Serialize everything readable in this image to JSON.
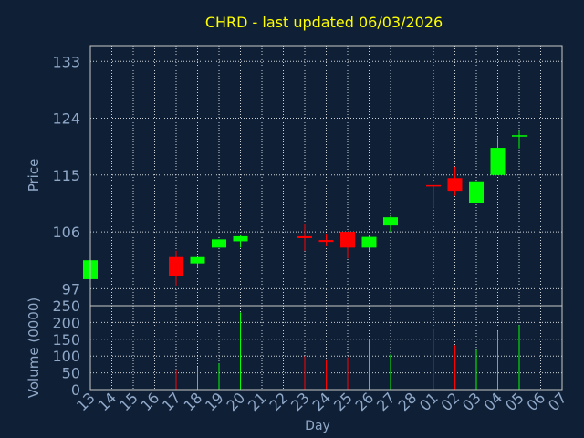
{
  "chart_data": {
    "type": "candlestick",
    "title": "CHRD - last updated 06/03/2026",
    "colors": {
      "background": "#0f1f35",
      "title": "#ffff00",
      "axis_text": "#8fa8c8",
      "frame": "#c8c8c8",
      "grid": "#ffffff",
      "up": "#00ff00",
      "down": "#ff0000"
    },
    "price_panel": {
      "ylabel": "Price",
      "yticks": [
        97,
        106,
        115,
        124,
        133
      ],
      "ylim": [
        94.3,
        135.5
      ]
    },
    "volume_panel": {
      "ylabel": "Volume (0000)",
      "yticks": [
        0,
        50,
        100,
        150,
        200,
        250
      ],
      "ylim": [
        0,
        250
      ]
    },
    "xlabel": "Day",
    "x_labels": [
      "13",
      "14",
      "15",
      "16",
      "17",
      "18",
      "19",
      "20",
      "21",
      "22",
      "23",
      "24",
      "25",
      "26",
      "27",
      "28",
      "01",
      "02",
      "03",
      "04",
      "05",
      "06",
      "07"
    ],
    "candles": [
      {
        "i": 0,
        "open": 98.5,
        "high": 101.5,
        "low": 98.0,
        "close": 101.5,
        "volume": 0
      },
      {
        "i": 4,
        "open": 102.0,
        "high": 103.0,
        "low": 97.5,
        "close": 99.0,
        "volume": 60
      },
      {
        "i": 5,
        "open": 101.0,
        "high": 102.0,
        "low": 100.3,
        "close": 102.0,
        "volume": 68
      },
      {
        "i": 6,
        "open": 103.5,
        "high": 104.8,
        "low": 103.5,
        "close": 104.8,
        "volume": 78
      },
      {
        "i": 7,
        "open": 104.5,
        "high": 105.5,
        "low": 103.5,
        "close": 105.3,
        "volume": 230
      },
      {
        "i": 10,
        "open": 105.3,
        "high": 107.3,
        "low": 103.0,
        "close": 105.0,
        "volume": 100
      },
      {
        "i": 11,
        "open": 104.7,
        "high": 105.7,
        "low": 103.7,
        "close": 104.4,
        "volume": 90
      },
      {
        "i": 12,
        "open": 106.0,
        "high": 106.0,
        "low": 101.8,
        "close": 103.5,
        "volume": 96
      },
      {
        "i": 13,
        "open": 103.5,
        "high": 105.5,
        "low": 103.0,
        "close": 105.2,
        "volume": 150
      },
      {
        "i": 14,
        "open": 107.0,
        "high": 108.5,
        "low": 106.0,
        "close": 108.3,
        "volume": 105
      },
      {
        "i": 16,
        "open": 113.4,
        "high": 113.4,
        "low": 109.8,
        "close": 113.3,
        "volume": 180
      },
      {
        "i": 17,
        "open": 114.5,
        "high": 116.3,
        "low": 111.7,
        "close": 112.5,
        "volume": 132
      },
      {
        "i": 18,
        "open": 110.5,
        "high": 114.0,
        "low": 110.5,
        "close": 114.0,
        "volume": 118
      },
      {
        "i": 19,
        "open": 115.0,
        "high": 121.0,
        "low": 115.0,
        "close": 119.3,
        "volume": 175
      },
      {
        "i": 20,
        "open": 121.2,
        "high": 122.0,
        "low": 119.2,
        "close": 121.3,
        "volume": 192
      }
    ]
  }
}
